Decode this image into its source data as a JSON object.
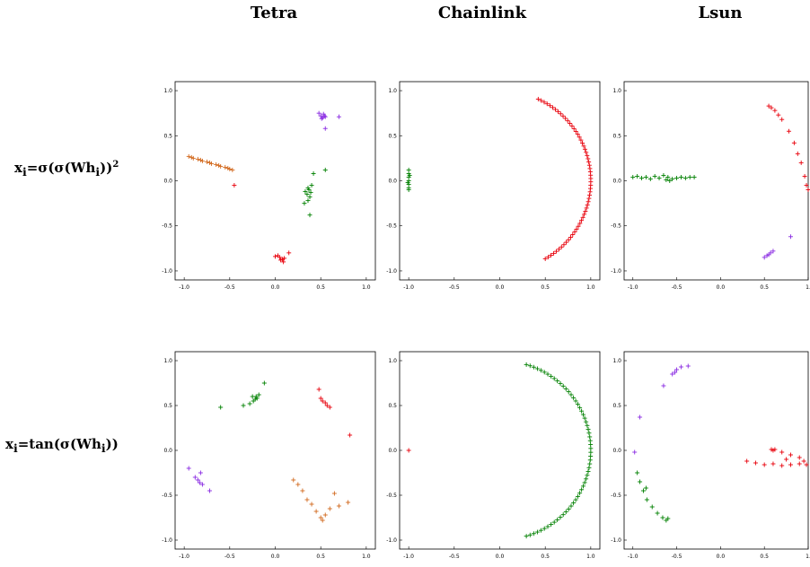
{
  "column_titles": [
    "Tetra",
    "Chainlink",
    "Lsun"
  ],
  "row_labels": [
    {
      "base": "x",
      "sub": "i",
      "eq": "=σ(σ(",
      "W": "Wh",
      "sub2": "i",
      "tail": "))",
      "sup": "2"
    },
    {
      "base": "x",
      "sub": "i",
      "eq": "=tan(σ(",
      "W": "Wh",
      "sub2": "i",
      "tail": "))",
      "sup": ""
    }
  ],
  "colors": {
    "red": "#e8000b",
    "green": "#008000",
    "purple": "#8a2be2",
    "orange": "#d2691e"
  },
  "chart_data": [
    {
      "type": "scatter",
      "title": "",
      "xlim": [
        -1.1,
        1.1
      ],
      "ylim": [
        -1.1,
        1.1
      ],
      "xticks": [
        "-1.0",
        "-0.5",
        "0.0",
        "0.5",
        "1.0"
      ],
      "yticks": [
        "1.0",
        "0.5",
        "0.0",
        "-0.5",
        "-1.0"
      ],
      "series": [
        {
          "color": "orange",
          "points": [
            [
              -0.95,
              0.27
            ],
            [
              -0.9,
              0.25
            ],
            [
              -0.85,
              0.24
            ],
            [
              -0.8,
              0.22
            ],
            [
              -0.75,
              0.21
            ],
            [
              -0.7,
              0.19
            ],
            [
              -0.65,
              0.18
            ],
            [
              -0.6,
              0.16
            ],
            [
              -0.55,
              0.15
            ],
            [
              -0.5,
              0.13
            ],
            [
              -0.47,
              0.12
            ],
            [
              -0.52,
              0.14
            ],
            [
              -0.62,
              0.17
            ],
            [
              -0.72,
              0.2
            ],
            [
              -0.82,
              0.23
            ],
            [
              -0.92,
              0.26
            ]
          ]
        },
        {
          "color": "red",
          "points": [
            [
              -0.45,
              -0.05
            ],
            [
              0.0,
              -0.84
            ],
            [
              0.05,
              -0.85
            ],
            [
              0.08,
              -0.87
            ],
            [
              0.1,
              -0.86
            ],
            [
              0.06,
              -0.88
            ],
            [
              0.03,
              -0.83
            ],
            [
              0.15,
              -0.8
            ],
            [
              0.09,
              -0.9
            ]
          ]
        },
        {
          "color": "green",
          "points": [
            [
              0.33,
              -0.12
            ],
            [
              0.35,
              -0.15
            ],
            [
              0.37,
              -0.1
            ],
            [
              0.38,
              -0.18
            ],
            [
              0.36,
              -0.08
            ],
            [
              0.4,
              -0.05
            ],
            [
              0.42,
              0.08
            ],
            [
              0.55,
              0.12
            ],
            [
              0.38,
              -0.38
            ],
            [
              0.32,
              -0.25
            ],
            [
              0.36,
              -0.22
            ],
            [
              0.39,
              -0.13
            ]
          ]
        },
        {
          "color": "purple",
          "points": [
            [
              0.5,
              0.72
            ],
            [
              0.52,
              0.7
            ],
            [
              0.54,
              0.72
            ],
            [
              0.55,
              0.71
            ],
            [
              0.51,
              0.69
            ],
            [
              0.53,
              0.74
            ],
            [
              0.48,
              0.75
            ],
            [
              0.7,
              0.71
            ],
            [
              0.55,
              0.58
            ]
          ]
        }
      ]
    },
    {
      "type": "scatter",
      "title": "",
      "xlim": [
        -1.1,
        1.1
      ],
      "ylim": [
        -1.1,
        1.1
      ],
      "xticks": [
        "-1.0",
        "-0.5",
        "0.0",
        "0.5",
        "1.0"
      ],
      "yticks": [
        "1.0",
        "0.5",
        "0.0",
        "-0.5",
        "-1.0"
      ],
      "series": [
        {
          "color": "green",
          "points": [
            [
              -1.0,
              0.12
            ],
            [
              -1.0,
              0.08
            ],
            [
              -1.0,
              0.04
            ],
            [
              -1.0,
              0.0
            ],
            [
              -1.0,
              -0.04
            ],
            [
              -1.0,
              -0.08
            ],
            [
              -1.0,
              -0.1
            ],
            [
              -0.99,
              0.06
            ],
            [
              -1.01,
              -0.02
            ]
          ]
        },
        {
          "color": "red",
          "arc": {
            "cx": 0.0,
            "cy": 0.0,
            "r": 1.0,
            "start_deg": 65,
            "end_deg": -60,
            "count": 60
          }
        }
      ]
    },
    {
      "type": "scatter",
      "title": "",
      "xlim": [
        -1.1,
        1.0
      ],
      "ylim": [
        -1.1,
        1.1
      ],
      "xticks": [
        "-1.0",
        "-0.5",
        "0.0",
        "0.5",
        "1."
      ],
      "yticks": [
        "1.0",
        "0.5",
        "0.0",
        "-0.5",
        "-1.0"
      ],
      "series": [
        {
          "color": "green",
          "points": [
            [
              -1.0,
              0.04
            ],
            [
              -0.95,
              0.05
            ],
            [
              -0.9,
              0.03
            ],
            [
              -0.85,
              0.04
            ],
            [
              -0.8,
              0.02
            ],
            [
              -0.75,
              0.05
            ],
            [
              -0.7,
              0.03
            ],
            [
              -0.65,
              0.06
            ],
            [
              -0.6,
              0.04
            ],
            [
              -0.55,
              0.02
            ],
            [
              -0.5,
              0.03
            ],
            [
              -0.45,
              0.04
            ],
            [
              -0.4,
              0.03
            ],
            [
              -0.35,
              0.04
            ],
            [
              -0.3,
              0.04
            ],
            [
              -0.62,
              0.01
            ],
            [
              -0.58,
              0.0
            ]
          ]
        },
        {
          "color": "red",
          "points": [
            [
              0.55,
              0.83
            ],
            [
              0.58,
              0.81
            ],
            [
              0.62,
              0.78
            ],
            [
              0.66,
              0.73
            ],
            [
              0.7,
              0.68
            ],
            [
              0.78,
              0.55
            ],
            [
              0.84,
              0.42
            ],
            [
              0.88,
              0.3
            ],
            [
              0.92,
              0.2
            ],
            [
              0.96,
              0.05
            ],
            [
              0.98,
              -0.05
            ],
            [
              1.0,
              -0.1
            ]
          ]
        },
        {
          "color": "purple",
          "points": [
            [
              0.5,
              -0.85
            ],
            [
              0.53,
              -0.83
            ],
            [
              0.55,
              -0.82
            ],
            [
              0.57,
              -0.8
            ],
            [
              0.6,
              -0.78
            ],
            [
              0.8,
              -0.62
            ]
          ]
        }
      ]
    },
    {
      "type": "scatter",
      "title": "",
      "xlim": [
        -1.1,
        1.1
      ],
      "ylim": [
        -1.1,
        1.1
      ],
      "xticks": [
        "-1.0",
        "-0.5",
        "0.0",
        "0.5",
        "1.0"
      ],
      "yticks": [
        "1.0",
        "0.5",
        "0.0",
        "-0.5",
        "-1.0"
      ],
      "series": [
        {
          "color": "green",
          "points": [
            [
              -0.25,
              0.6
            ],
            [
              -0.22,
              0.57
            ],
            [
              -0.2,
              0.58
            ],
            [
              -0.24,
              0.55
            ],
            [
              -0.18,
              0.62
            ],
            [
              -0.28,
              0.52
            ],
            [
              -0.35,
              0.5
            ],
            [
              -0.12,
              0.75
            ],
            [
              -0.6,
              0.48
            ],
            [
              -0.21,
              0.6
            ]
          ]
        },
        {
          "color": "red",
          "points": [
            [
              0.52,
              0.55
            ],
            [
              0.55,
              0.53
            ],
            [
              0.57,
              0.5
            ],
            [
              0.6,
              0.48
            ],
            [
              0.5,
              0.58
            ],
            [
              0.48,
              0.68
            ],
            [
              0.82,
              0.17
            ]
          ]
        },
        {
          "color": "purple",
          "points": [
            [
              -0.88,
              -0.3
            ],
            [
              -0.85,
              -0.33
            ],
            [
              -0.83,
              -0.36
            ],
            [
              -0.8,
              -0.38
            ],
            [
              -0.82,
              -0.25
            ],
            [
              -0.95,
              -0.2
            ],
            [
              -0.72,
              -0.45
            ]
          ]
        },
        {
          "color": "orange",
          "points": [
            [
              0.2,
              -0.33
            ],
            [
              0.25,
              -0.38
            ],
            [
              0.3,
              -0.45
            ],
            [
              0.35,
              -0.55
            ],
            [
              0.4,
              -0.6
            ],
            [
              0.45,
              -0.68
            ],
            [
              0.5,
              -0.75
            ],
            [
              0.55,
              -0.72
            ],
            [
              0.6,
              -0.65
            ],
            [
              0.7,
              -0.62
            ],
            [
              0.8,
              -0.58
            ],
            [
              0.65,
              -0.48
            ],
            [
              0.52,
              -0.78
            ]
          ]
        }
      ]
    },
    {
      "type": "scatter",
      "title": "",
      "xlim": [
        -1.1,
        1.1
      ],
      "ylim": [
        -1.1,
        1.1
      ],
      "xticks": [
        "-1.0",
        "-0.5",
        "0.0",
        "0.5",
        "1.0"
      ],
      "yticks": [
        "1.0",
        "0.5",
        "0.0",
        "-0.5",
        "-1.0"
      ],
      "series": [
        {
          "color": "red",
          "points": [
            [
              -1.0,
              0.0
            ]
          ]
        },
        {
          "color": "green",
          "arc": {
            "cx": 0.0,
            "cy": 0.0,
            "r": 1.0,
            "start_deg": 73,
            "end_deg": -73,
            "count": 60
          }
        }
      ]
    },
    {
      "type": "scatter",
      "title": "",
      "xlim": [
        -1.1,
        1.0
      ],
      "ylim": [
        -1.1,
        1.1
      ],
      "xticks": [
        "-1.0",
        "-0.5",
        "0.0",
        "0.5",
        "1."
      ],
      "yticks": [
        "1.0",
        "0.5",
        "0.0",
        "-0.5",
        "-1.0"
      ],
      "series": [
        {
          "color": "purple",
          "points": [
            [
              -0.5,
              0.9
            ],
            [
              -0.45,
              0.93
            ],
            [
              -0.52,
              0.87
            ],
            [
              -0.55,
              0.85
            ],
            [
              -0.65,
              0.72
            ],
            [
              -0.37,
              0.94
            ],
            [
              -0.92,
              0.37
            ],
            [
              -0.98,
              -0.02
            ]
          ]
        },
        {
          "color": "green",
          "points": [
            [
              -0.95,
              -0.25
            ],
            [
              -0.92,
              -0.35
            ],
            [
              -0.88,
              -0.45
            ],
            [
              -0.84,
              -0.55
            ],
            [
              -0.78,
              -0.63
            ],
            [
              -0.72,
              -0.7
            ],
            [
              -0.66,
              -0.75
            ],
            [
              -0.62,
              -0.78
            ],
            [
              -0.6,
              -0.76
            ],
            [
              -0.85,
              -0.42
            ]
          ]
        },
        {
          "color": "red",
          "points": [
            [
              0.3,
              -0.12
            ],
            [
              0.4,
              -0.14
            ],
            [
              0.5,
              -0.16
            ],
            [
              0.6,
              -0.15
            ],
            [
              0.7,
              -0.17
            ],
            [
              0.8,
              -0.16
            ],
            [
              0.9,
              -0.15
            ],
            [
              0.95,
              -0.12
            ],
            [
              0.9,
              -0.08
            ],
            [
              0.8,
              -0.05
            ],
            [
              0.7,
              -0.02
            ],
            [
              0.6,
              0.0
            ],
            [
              0.58,
              0.01
            ],
            [
              0.62,
              0.01
            ],
            [
              0.75,
              -0.1
            ],
            [
              0.98,
              -0.16
            ]
          ]
        }
      ]
    }
  ]
}
